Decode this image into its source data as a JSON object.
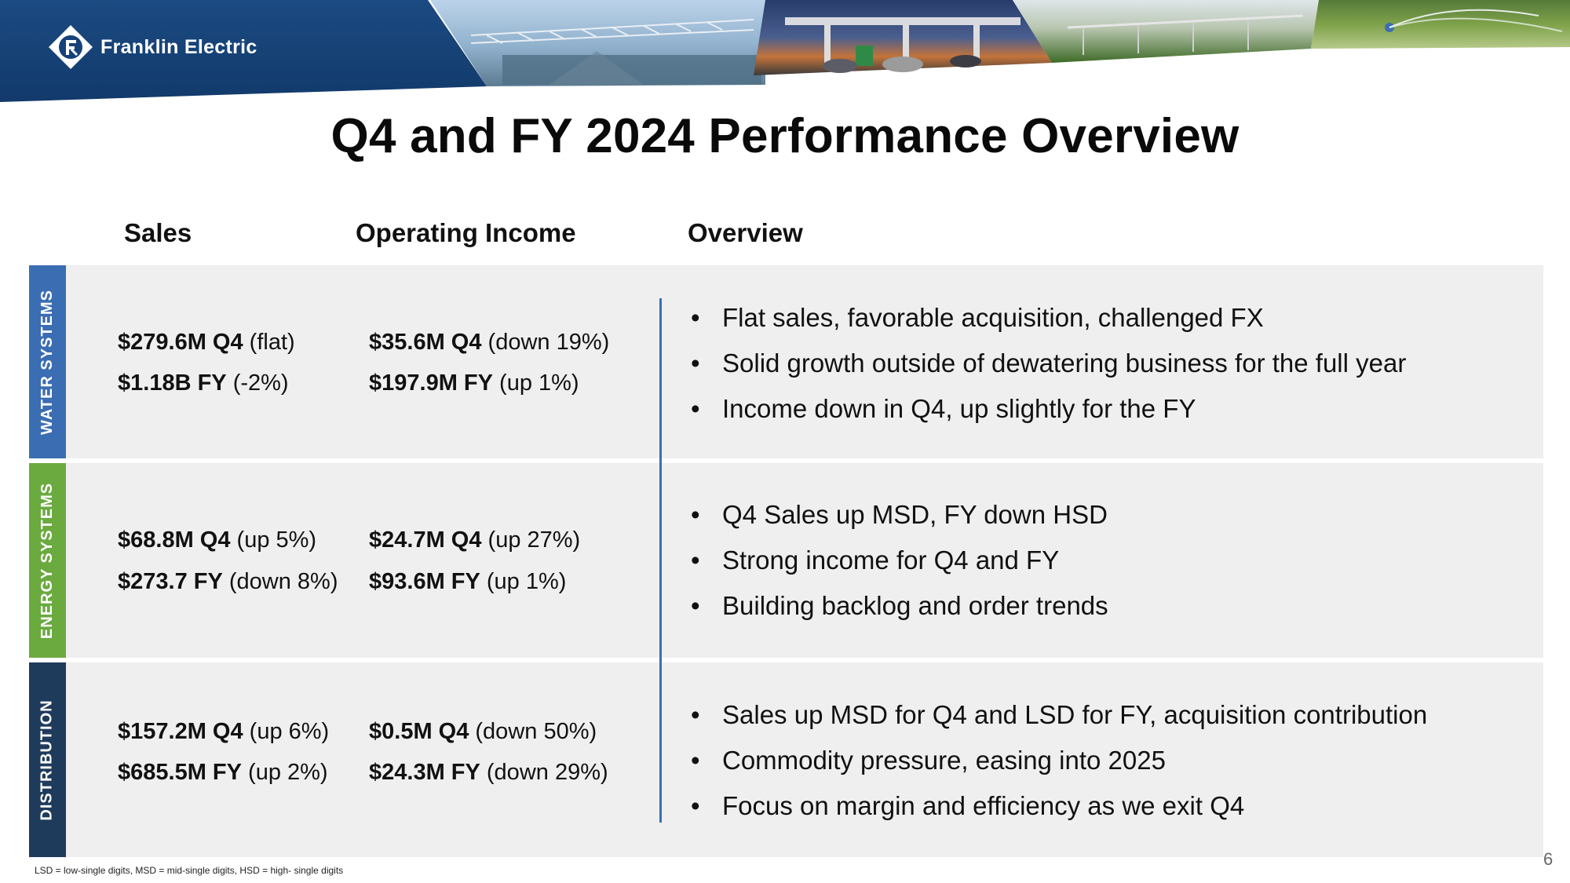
{
  "header": {
    "company": "Franklin Electric",
    "logo_icon": "franklin-electric-logo-icon",
    "brand_color": "#16427a"
  },
  "title": "Q4 and FY 2024 Performance Overview",
  "columns": {
    "sales": "Sales",
    "operating_income": "Operating Income",
    "overview": "Overview"
  },
  "segments": [
    {
      "name": "WATER SYSTEMS",
      "color": "#3b6db2",
      "sales_q4_value": "$279.6M Q4",
      "sales_q4_change": " (flat)",
      "sales_fy_value": "$1.18B FY",
      "sales_fy_change": " (-2%)",
      "oi_q4_value": "$35.6M Q4",
      "oi_q4_change": " (down 19%)",
      "oi_fy_value": "$197.9M FY",
      "oi_fy_change": " (up 1%)",
      "bullets": [
        "Flat sales, favorable acquisition, challenged FX",
        "Solid growth outside of dewatering business for the full year",
        "Income down in Q4, up slightly for the FY"
      ]
    },
    {
      "name": "ENERGY SYSTEMS",
      "color": "#6aaa3f",
      "sales_q4_value": "$68.8M Q4",
      "sales_q4_change": " (up 5%)",
      "sales_fy_value": "$273.7 FY",
      "sales_fy_change": " (down 8%)",
      "oi_q4_value": "$24.7M Q4",
      "oi_q4_change": " (up 27%)",
      "oi_fy_value": "$93.6M FY",
      "oi_fy_change": " (up 1%)",
      "bullets": [
        "Q4 Sales up MSD, FY down HSD",
        "Strong income for Q4 and FY",
        "Building backlog and order trends"
      ]
    },
    {
      "name": "DISTRIBUTION",
      "color": "#1f3b5c",
      "sales_q4_value": "$157.2M Q4",
      "sales_q4_change": " (up 6%)",
      "sales_fy_value": "$685.5M FY",
      "sales_fy_change": " (up 2%)",
      "oi_q4_value": "$0.5M Q4",
      "oi_q4_change": " (down 50%)",
      "oi_fy_value": "$24.3M FY",
      "oi_fy_change": " (down 29%)",
      "bullets": [
        "Sales up MSD for Q4 and LSD for FY, acquisition contribution",
        "Commodity pressure, easing into 2025",
        "Focus on margin and efficiency as we exit Q4"
      ]
    }
  ],
  "footnote": "LSD = low-single digits, MSD = mid-single digits, HSD = high- single digits",
  "page_number": "6"
}
